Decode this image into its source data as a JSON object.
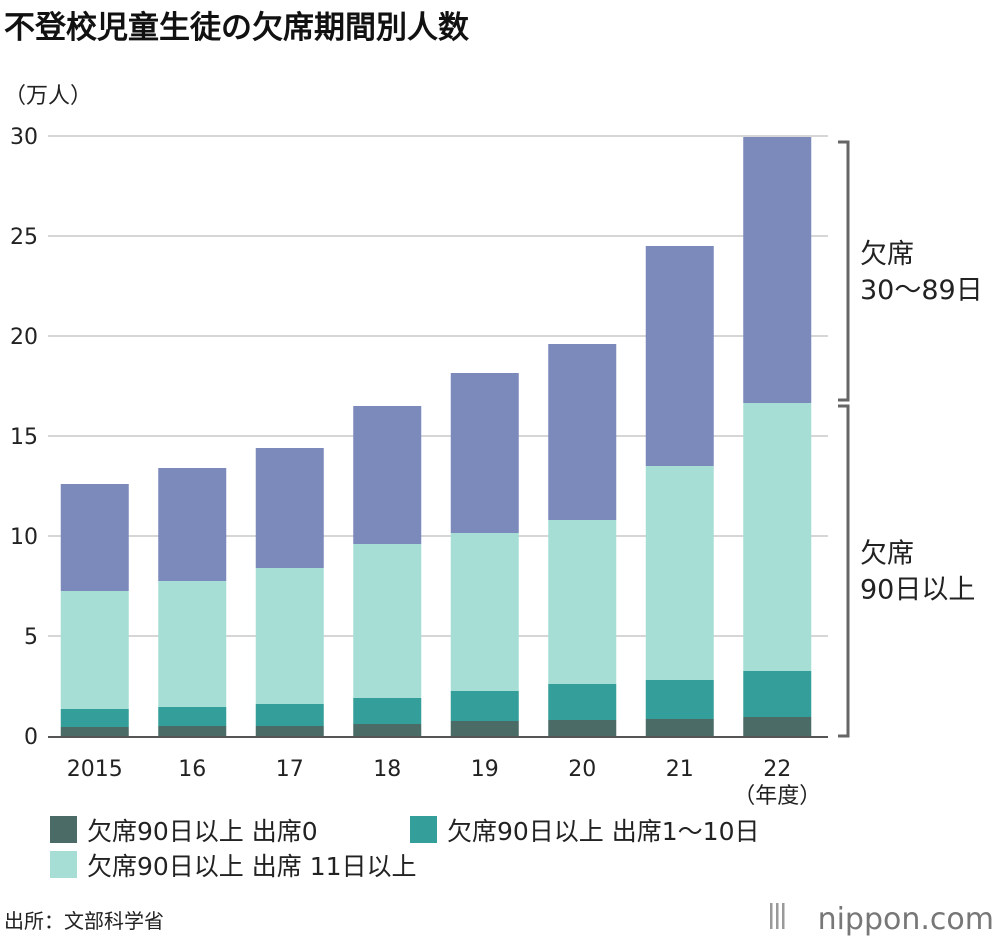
{
  "chart_data": {
    "type": "bar",
    "stacked": true,
    "title": "不登校児童生徒の欠席期間別人数",
    "unit_label": "（万人）",
    "categories": [
      "2015",
      "16",
      "17",
      "18",
      "19",
      "20",
      "21",
      "22"
    ],
    "x_unit_label": "（年度）",
    "ylim": [
      0,
      30
    ],
    "yticks": [
      0,
      5,
      10,
      15,
      20,
      25,
      30
    ],
    "grid": true,
    "series": [
      {
        "name": "欠席90日以上 出席0",
        "color": "#4a6b66",
        "values": [
          0.45,
          0.5,
          0.5,
          0.6,
          0.75,
          0.8,
          0.85,
          0.95
        ]
      },
      {
        "name": "欠席90日以上 出席1〜10日",
        "color": "#339e9a",
        "values": [
          0.9,
          0.95,
          1.1,
          1.3,
          1.5,
          1.8,
          1.95,
          2.3
        ]
      },
      {
        "name": "欠席90日以上 出席 11日以上",
        "color": "#a6ded6",
        "values": [
          5.9,
          6.3,
          6.8,
          7.7,
          7.9,
          8.2,
          10.7,
          13.4
        ]
      },
      {
        "name": "欠席30〜89日",
        "color": "#7b89bb",
        "values": [
          5.35,
          5.65,
          6.0,
          6.9,
          8.0,
          8.8,
          11.0,
          13.3
        ]
      }
    ],
    "annotations": [
      {
        "label_line1": "欠席",
        "label_line2": "30〜89日",
        "from": 16.65,
        "to": 29.95
      },
      {
        "label_line1": "欠席",
        "label_line2": "90日以上",
        "from": 0,
        "to": 16.65
      }
    ],
    "legend_position": "bottom"
  },
  "source": "出所：文部科学省",
  "brand": "nippon.com"
}
